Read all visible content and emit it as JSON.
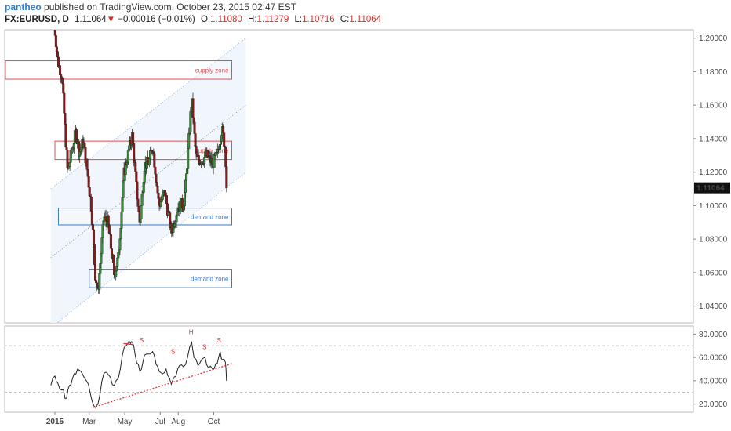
{
  "header": {
    "author": "pantheo",
    "published_text": "published on TradingView.com, October 23, 2015 02:47 EST",
    "symbol": "FX:EURUSD, D",
    "last": "1.11064",
    "change": "−0.00016 (−0.01%)",
    "open_label": "O:",
    "open": "1.11080",
    "high_label": "H:",
    "high": "1.11279",
    "low_label": "L:",
    "low": "1.10716",
    "close_label": "C:",
    "close": "1.11064"
  },
  "colors": {
    "up": "#3a8f3a",
    "down": "#8b1a1a",
    "supply": "#e05050",
    "demand": "#3a78c8",
    "channel_fill": "#eef4fb",
    "channel_line": "#8fb3dd",
    "rsi_line": "#222222",
    "trendline": "#e03030"
  },
  "chart_data": [
    {
      "type": "candlestick",
      "symbol": "FX:EURUSD",
      "timeframe": "D",
      "ylim": [
        1.03,
        1.205
      ],
      "y_ticks": [
        "1.20000",
        "1.18000",
        "1.16000",
        "1.14000",
        "1.12000",
        "1.10000",
        "1.08000",
        "1.06000",
        "1.04000"
      ],
      "last_price_label": "1.11064",
      "x_ticks": [
        "2015",
        "Mar",
        "May",
        "Jul",
        "Aug",
        "Oct"
      ],
      "price_path": [
        [
          "2014-12-31",
          1.209
        ],
        [
          "2015-01-06",
          1.186
        ],
        [
          "2015-01-13",
          1.178
        ],
        [
          "2015-01-23",
          1.119
        ],
        [
          "2015-01-29",
          1.131
        ],
        [
          "2015-02-06",
          1.144
        ],
        [
          "2015-02-12",
          1.132
        ],
        [
          "2015-02-19",
          1.138
        ],
        [
          "2015-02-26",
          1.12
        ],
        [
          "2015-03-05",
          1.098
        ],
        [
          "2015-03-11",
          1.06
        ],
        [
          "2015-03-16",
          1.048
        ],
        [
          "2015-03-26",
          1.093
        ],
        [
          "2015-04-02",
          1.09
        ],
        [
          "2015-04-13",
          1.059
        ],
        [
          "2015-04-20",
          1.069
        ],
        [
          "2015-04-30",
          1.12
        ],
        [
          "2015-05-14",
          1.142
        ],
        [
          "2015-05-21",
          1.111
        ],
        [
          "2015-05-27",
          1.089
        ],
        [
          "2015-06-04",
          1.124
        ],
        [
          "2015-06-12",
          1.126
        ],
        [
          "2015-06-18",
          1.136
        ],
        [
          "2015-06-29",
          1.1
        ],
        [
          "2015-07-09",
          1.108
        ],
        [
          "2015-07-20",
          1.084
        ],
        [
          "2015-07-31",
          1.099
        ],
        [
          "2015-08-10",
          1.101
        ],
        [
          "2015-08-14",
          1.113
        ],
        [
          "2015-08-24",
          1.164
        ],
        [
          "2015-09-01",
          1.128
        ],
        [
          "2015-09-10",
          1.127
        ],
        [
          "2015-09-18",
          1.13
        ],
        [
          "2015-09-29",
          1.125
        ],
        [
          "2015-10-07",
          1.13
        ],
        [
          "2015-10-15",
          1.146
        ],
        [
          "2015-10-21",
          1.134
        ],
        [
          "2015-10-23",
          1.111
        ]
      ],
      "zones": [
        {
          "label": "supply zone",
          "kind": "supply",
          "y_low": 1.1755,
          "y_high": 1.1865,
          "x_start": "2014-10-01",
          "x_end": "2015-11-01"
        },
        {
          "label": "supply zone",
          "kind": "supply",
          "y_low": 1.1275,
          "y_high": 1.1385,
          "x_start": "2015-01-01",
          "x_end": "2015-11-01"
        },
        {
          "label": "demand zone",
          "kind": "demand",
          "y_low": 1.0885,
          "y_high": 1.0985,
          "x_start": "2015-01-07",
          "x_end": "2015-11-01"
        },
        {
          "label": "demand zone",
          "kind": "demand",
          "y_low": 1.051,
          "y_high": 1.062,
          "x_start": "2015-03-01",
          "x_end": "2015-11-01"
        }
      ],
      "channel": {
        "lower": [
          [
            "2014-12-25",
            1.027
          ],
          [
            "2015-11-25",
            1.12
          ]
        ],
        "middle": [
          [
            "2014-12-25",
            1.069
          ],
          [
            "2015-11-25",
            1.16
          ]
        ],
        "upper": [
          [
            "2014-12-25",
            1.11
          ],
          [
            "2015-11-25",
            1.2
          ]
        ]
      }
    },
    {
      "type": "line",
      "indicator": "RSI",
      "ylim": [
        13,
        87
      ],
      "y_ticks": [
        "80.0000",
        "60.0000",
        "40.0000",
        "20.0000"
      ],
      "guides": [
        70,
        30
      ],
      "rsi_path": [
        [
          "2014-12-25",
          36
        ],
        [
          "2015-01-01",
          44
        ],
        [
          "2015-01-06",
          38
        ],
        [
          "2015-01-13",
          32
        ],
        [
          "2015-01-21",
          25
        ],
        [
          "2015-01-26",
          36
        ],
        [
          "2015-02-03",
          46
        ],
        [
          "2015-02-09",
          50
        ],
        [
          "2015-02-17",
          46
        ],
        [
          "2015-02-24",
          40
        ],
        [
          "2015-03-03",
          29
        ],
        [
          "2015-03-11",
          17
        ],
        [
          "2015-03-16",
          20
        ],
        [
          "2015-03-26",
          46
        ],
        [
          "2015-04-03",
          45
        ],
        [
          "2015-04-13",
          36
        ],
        [
          "2015-04-20",
          42
        ],
        [
          "2015-04-27",
          62
        ],
        [
          "2015-05-03",
          70
        ],
        [
          "2015-05-11",
          72
        ],
        [
          "2015-05-14",
          73
        ],
        [
          "2015-05-19",
          62
        ],
        [
          "2015-05-27",
          48
        ],
        [
          "2015-06-04",
          62
        ],
        [
          "2015-06-11",
          63
        ],
        [
          "2015-06-18",
          65
        ],
        [
          "2015-06-24",
          54
        ],
        [
          "2015-07-02",
          47
        ],
        [
          "2015-07-11",
          50
        ],
        [
          "2015-07-20",
          37
        ],
        [
          "2015-07-28",
          44
        ],
        [
          "2015-08-03",
          53
        ],
        [
          "2015-08-10",
          52
        ],
        [
          "2015-08-17",
          60
        ],
        [
          "2015-08-24",
          73
        ],
        [
          "2015-08-28",
          60
        ],
        [
          "2015-09-04",
          53
        ],
        [
          "2015-09-10",
          58
        ],
        [
          "2015-09-16",
          60
        ],
        [
          "2015-09-22",
          51
        ],
        [
          "2015-09-29",
          50
        ],
        [
          "2015-10-07",
          55
        ],
        [
          "2015-10-12",
          65
        ],
        [
          "2015-10-16",
          58
        ],
        [
          "2015-10-21",
          56
        ],
        [
          "2015-10-23",
          40
        ]
      ],
      "trendlines": [
        {
          "from": [
            "2015-03-07",
            17
          ],
          "to": [
            "2015-11-03",
            55
          ],
          "style": "dotted"
        },
        {
          "from": [
            "2015-04-29",
            72
          ],
          "to": [
            "2015-05-15",
            71
          ],
          "style": "solid"
        }
      ],
      "annotations": [
        {
          "text": "S",
          "x": "2015-05-30",
          "y": 73
        },
        {
          "text": "S",
          "x": "2015-07-23",
          "y": 63
        },
        {
          "text": "H",
          "x": "2015-08-23",
          "y": 80
        },
        {
          "text": "S",
          "x": "2015-09-15",
          "y": 67
        },
        {
          "text": "S",
          "x": "2015-10-10",
          "y": 73
        }
      ]
    }
  ]
}
